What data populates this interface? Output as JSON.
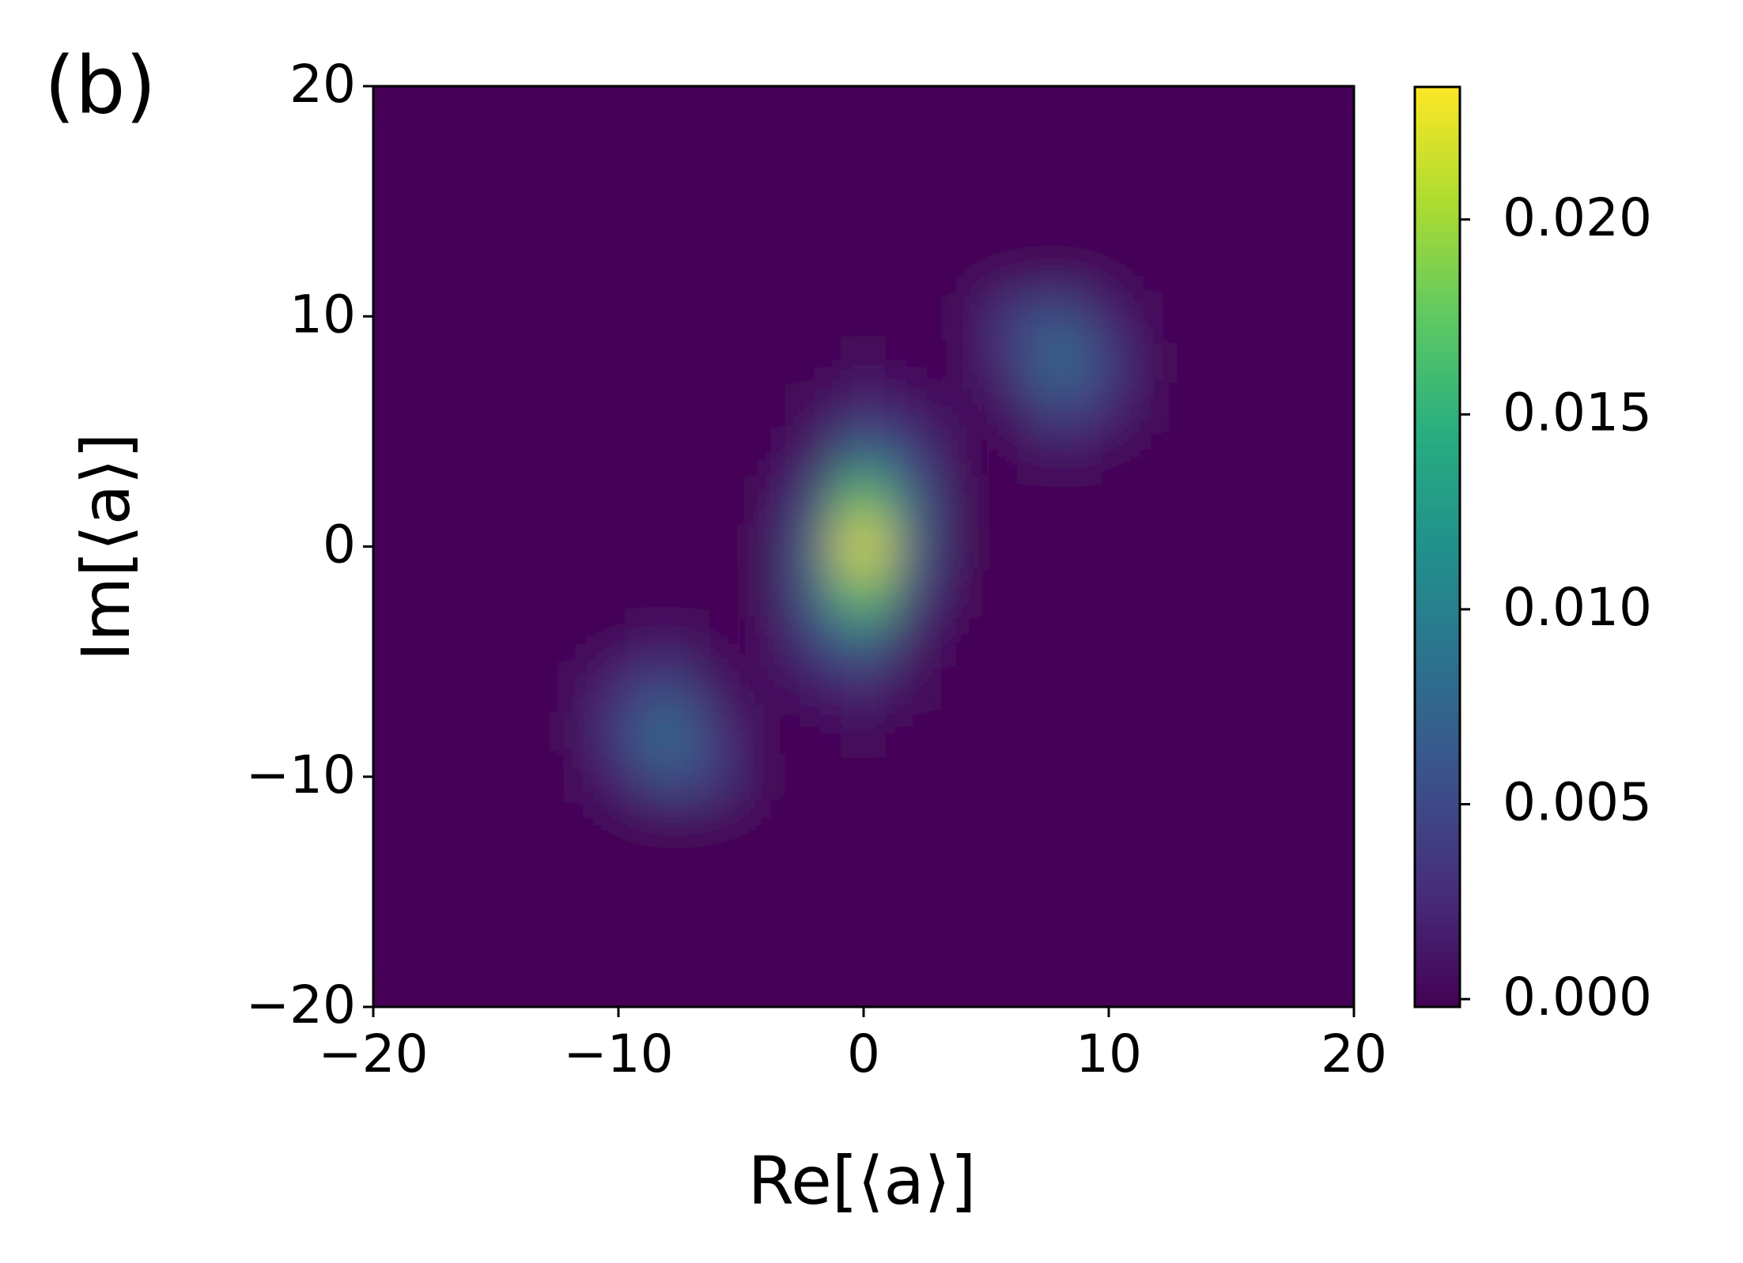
{
  "chart_data": {
    "type": "heatmap",
    "panel_label": "(b)",
    "xlabel": "Re[⟨a⟩]",
    "ylabel": "Im[⟨a⟩]",
    "xlim": [
      -20,
      20
    ],
    "ylim": [
      -20,
      20
    ],
    "xticks": [
      {
        "value": -20,
        "label": "−20"
      },
      {
        "value": -10,
        "label": "−10"
      },
      0,
      10,
      20
    ],
    "yticks": [
      {
        "value": -20,
        "label": "−20"
      },
      {
        "value": -10,
        "label": "−10"
      },
      0,
      10,
      20
    ],
    "colormap": "viridis",
    "clim": [
      -0.0002,
      0.0234
    ],
    "cticks": [
      {
        "value": 0,
        "label": "0.000"
      },
      {
        "value": 0.005,
        "label": "0.005"
      },
      {
        "value": 0.01,
        "label": "0.010"
      },
      {
        "value": 0.015,
        "label": "0.015"
      },
      {
        "value": 0.02,
        "label": "0.020"
      }
    ],
    "x": [
      -20,
      -18,
      -16,
      -14,
      -12,
      -10,
      -8,
      -6,
      -4,
      -2,
      0,
      2,
      4,
      6,
      8,
      10,
      12,
      14,
      16,
      18,
      20
    ],
    "y": [
      -20,
      -18,
      -16,
      -14,
      -12,
      -10,
      -8,
      -6,
      -4,
      -2,
      0,
      2,
      4,
      6,
      8,
      10,
      12,
      14,
      16,
      18,
      20
    ],
    "z": [
      [
        0,
        0,
        0,
        0,
        0,
        0,
        0,
        0,
        0,
        0,
        0,
        0,
        0,
        0,
        0,
        0,
        0,
        0,
        0,
        0,
        0
      ],
      [
        0,
        0,
        0,
        0,
        0,
        0,
        0,
        0,
        0,
        0,
        0,
        0,
        0,
        0,
        0,
        0,
        0,
        0,
        0,
        0,
        0
      ],
      [
        0,
        0,
        0,
        0,
        0,
        0,
        0,
        0,
        0,
        0,
        0,
        0,
        0,
        0,
        0,
        0,
        0,
        0,
        0,
        0,
        0
      ],
      [
        0,
        0,
        0,
        0,
        0,
        0,
        0,
        0,
        0,
        0,
        0,
        0,
        0,
        0,
        0,
        0,
        0,
        0,
        0,
        0,
        0
      ],
      [
        0,
        0,
        0,
        0,
        0,
        0,
        0,
        0,
        0,
        0,
        0,
        0,
        0,
        0,
        0,
        0,
        0,
        0,
        0,
        0,
        0
      ],
      [
        0,
        0,
        0,
        0,
        0,
        0.002,
        0.006,
        0.004,
        0,
        0,
        0,
        0,
        0,
        0,
        0,
        0,
        0,
        0,
        0,
        0,
        0
      ],
      [
        0,
        0,
        0,
        0,
        0,
        0.004,
        0.009,
        0.003,
        0,
        0,
        0.0004,
        0,
        0,
        0,
        0,
        0,
        0,
        0,
        0,
        0,
        0
      ],
      [
        0,
        0,
        0,
        0,
        0,
        0.0025,
        0.005,
        0.001,
        0,
        0.0012,
        0.0023,
        0.0003,
        0,
        0,
        0,
        0,
        0,
        0,
        0,
        0,
        0
      ],
      [
        0,
        0,
        0,
        0,
        0,
        0,
        0.001,
        0,
        0,
        0.004,
        0.0083,
        0.0013,
        0,
        0,
        0,
        0,
        0,
        0,
        0,
        0,
        0
      ],
      [
        0,
        0,
        0,
        0,
        0,
        0,
        0,
        0,
        0,
        0.0065,
        0.0178,
        0.0045,
        0,
        0,
        0,
        0,
        0,
        0,
        0,
        0,
        0
      ],
      [
        0,
        0,
        0,
        0,
        0,
        0,
        0,
        0,
        0,
        0.007,
        0.023,
        0.007,
        0,
        0,
        0,
        0,
        0,
        0,
        0,
        0,
        0
      ],
      [
        0,
        0,
        0,
        0,
        0,
        0,
        0,
        0,
        0,
        0.0045,
        0.0178,
        0.0065,
        0,
        0,
        0,
        0,
        0,
        0,
        0,
        0,
        0
      ],
      [
        0,
        0,
        0,
        0,
        0,
        0,
        0,
        0,
        0,
        0.0013,
        0.0083,
        0.004,
        0,
        0,
        0.001,
        0,
        0,
        0,
        0,
        0,
        0
      ],
      [
        0,
        0,
        0,
        0,
        0,
        0,
        0,
        0,
        0,
        0.0003,
        0.0023,
        0.0012,
        0,
        0.001,
        0.005,
        0.0025,
        0,
        0,
        0,
        0,
        0
      ],
      [
        0,
        0,
        0,
        0,
        0,
        0,
        0,
        0,
        0,
        0,
        0.0004,
        0,
        0,
        0.003,
        0.009,
        0.004,
        0,
        0,
        0,
        0,
        0
      ],
      [
        0,
        0,
        0,
        0,
        0,
        0,
        0,
        0,
        0,
        0,
        0,
        0,
        0,
        0.004,
        0.006,
        0.002,
        0,
        0,
        0,
        0,
        0
      ],
      [
        0,
        0,
        0,
        0,
        0,
        0,
        0,
        0,
        0,
        0,
        0,
        0,
        0,
        0,
        0,
        0,
        0,
        0,
        0,
        0,
        0
      ],
      [
        0,
        0,
        0,
        0,
        0,
        0,
        0,
        0,
        0,
        0,
        0,
        0,
        0,
        0,
        0,
        0,
        0,
        0,
        0,
        0,
        0
      ],
      [
        0,
        0,
        0,
        0,
        0,
        0,
        0,
        0,
        0,
        0,
        0,
        0,
        0,
        0,
        0,
        0,
        0,
        0,
        0,
        0,
        0
      ],
      [
        0,
        0,
        0,
        0,
        0,
        0,
        0,
        0,
        0,
        0,
        0,
        0,
        0,
        0,
        0,
        0,
        0,
        0,
        0,
        0,
        0
      ],
      [
        0,
        0,
        0,
        0,
        0,
        0,
        0,
        0,
        0,
        0,
        0,
        0,
        0,
        0,
        0,
        0,
        0,
        0,
        0,
        0,
        0
      ]
    ]
  }
}
